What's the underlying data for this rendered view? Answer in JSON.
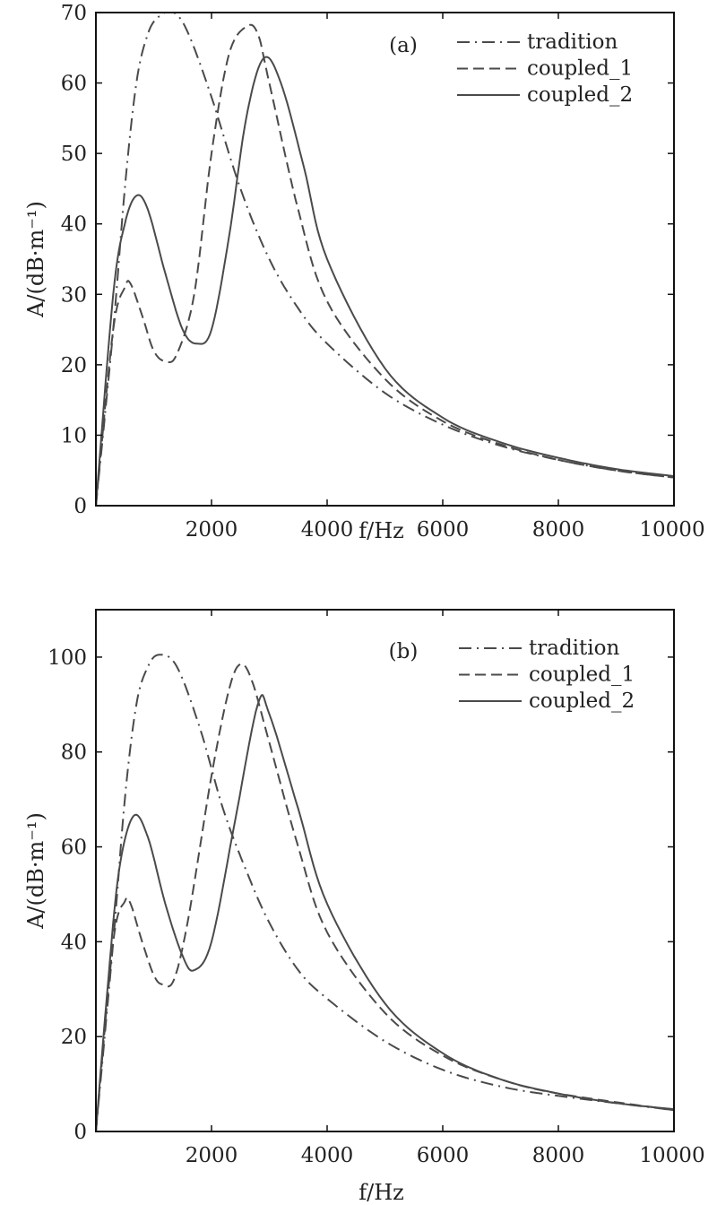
{
  "chart_data": [
    {
      "type": "line",
      "panel_label": "(a)",
      "xlabel": "f/Hz",
      "ylabel": "A/(dB·m⁻¹)",
      "xlim": [
        0,
        10000
      ],
      "ylim": [
        0,
        70
      ],
      "xticks": [
        2000,
        4000,
        6000,
        8000,
        10000
      ],
      "yticks": [
        0,
        10,
        20,
        30,
        40,
        50,
        60,
        70
      ],
      "grid": false,
      "legend_position": "top-right",
      "series": [
        {
          "name": "tradition",
          "style": "dashdot",
          "x": [
            0,
            300,
            500,
            700,
            900,
            1100,
            1350,
            1600,
            2000,
            2500,
            3000,
            3500,
            4000,
            5000,
            6000,
            7000,
            8000,
            9000,
            10000
          ],
          "y": [
            0,
            25,
            45,
            60,
            67,
            69.5,
            70,
            67,
            58,
            45,
            35,
            28,
            23,
            16,
            11.5,
            8.5,
            6.5,
            5,
            4
          ]
        },
        {
          "name": "coupled_1",
          "style": "dashed",
          "x": [
            0,
            300,
            500,
            600,
            800,
            1000,
            1200,
            1400,
            1700,
            2000,
            2300,
            2600,
            2800,
            3000,
            3500,
            4000,
            5000,
            6000,
            7000,
            8000,
            9000,
            10000
          ],
          "y": [
            0,
            25,
            31,
            31.5,
            27,
            22,
            20.5,
            21.5,
            30,
            50,
            64,
            68,
            67,
            60,
            42,
            29,
            18,
            12,
            8.7,
            6.5,
            5,
            4
          ]
        },
        {
          "name": "coupled_2",
          "style": "solid",
          "x": [
            0,
            300,
            500,
            700,
            900,
            1200,
            1500,
            1750,
            2000,
            2300,
            2600,
            2900,
            3200,
            3600,
            4000,
            5000,
            6000,
            7000,
            8000,
            9000,
            10000
          ],
          "y": [
            0,
            30,
            40,
            44,
            42,
            33,
            25,
            23,
            25,
            38,
            55,
            63.5,
            60,
            48,
            35,
            19.5,
            12.5,
            9,
            6.8,
            5.2,
            4.2
          ]
        }
      ]
    },
    {
      "type": "line",
      "panel_label": "(b)",
      "xlabel": "f/Hz",
      "ylabel": "A/(dB·m⁻¹)",
      "xlim": [
        0,
        10000
      ],
      "ylim": [
        0,
        110
      ],
      "xticks": [
        2000,
        4000,
        6000,
        8000,
        10000
      ],
      "yticks": [
        0,
        20,
        40,
        60,
        80,
        100
      ],
      "grid": false,
      "legend_position": "top-right",
      "series": [
        {
          "name": "tradition",
          "style": "dashdot",
          "x": [
            0,
            300,
            500,
            700,
            900,
            1100,
            1400,
            1800,
            2200,
            2600,
            3000,
            3500,
            4000,
            5000,
            6000,
            7000,
            8000,
            10000
          ],
          "y": [
            0,
            40,
            70,
            90,
            98,
            100.5,
            98,
            85,
            68,
            55,
            44,
            34,
            28,
            19,
            13,
            9.5,
            7.5,
            4.5
          ]
        },
        {
          "name": "coupled_1",
          "style": "dashed",
          "x": [
            0,
            300,
            500,
            600,
            800,
            1000,
            1150,
            1350,
            1600,
            2000,
            2300,
            2500,
            2700,
            3000,
            3500,
            4000,
            5000,
            6000,
            7000,
            8000,
            10000
          ],
          "y": [
            0,
            40,
            48.5,
            48,
            40,
            33,
            31,
            32,
            45,
            75,
            93,
            98.5,
            95,
            82,
            60,
            42,
            25,
            16,
            11,
            8,
            4.5
          ]
        },
        {
          "name": "coupled_2",
          "style": "solid",
          "x": [
            0,
            200,
            400,
            650,
            900,
            1200,
            1500,
            1700,
            2000,
            2400,
            2800,
            3000,
            3500,
            4000,
            5000,
            6000,
            7000,
            8000,
            9000,
            10000
          ],
          "y": [
            0,
            30,
            55,
            66.5,
            62,
            48,
            37,
            34,
            40,
            65,
            90,
            88,
            68,
            48,
            27,
            16.5,
            11,
            8,
            6,
            4.7
          ]
        }
      ]
    }
  ]
}
